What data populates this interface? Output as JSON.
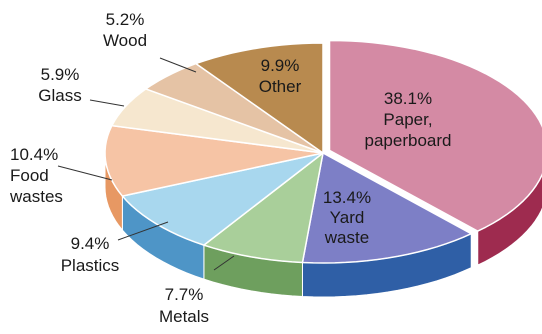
{
  "chart_data": {
    "type": "pie",
    "style": "3d-exploded",
    "title": "",
    "slices": [
      {
        "label_lines": [
          "Paper,",
          "paperboard"
        ],
        "value": 38.1,
        "pct_text": "38.1%",
        "color": "#d48aa4",
        "side_color": "#9e2b4f"
      },
      {
        "label_lines": [
          "Yard",
          "waste"
        ],
        "value": 13.4,
        "pct_text": "13.4%",
        "color": "#7d7fc6",
        "side_color": "#2f5fa6"
      },
      {
        "label_lines": [
          "Metals"
        ],
        "value": 7.7,
        "pct_text": "7.7%",
        "color": "#a9cf9a",
        "side_color": "#6e9f5e"
      },
      {
        "label_lines": [
          "Plastics"
        ],
        "value": 9.4,
        "pct_text": "9.4%",
        "color": "#a8d7ee",
        "side_color": "#4e95c7"
      },
      {
        "label_lines": [
          "Food",
          "wastes"
        ],
        "value": 10.4,
        "pct_text": "10.4%",
        "color": "#f6c4a5",
        "side_color": "#e79863"
      },
      {
        "label_lines": [
          "Glass"
        ],
        "value": 5.9,
        "pct_text": "5.9%",
        "color": "#f6e7cf",
        "side_color": "#e7d2a8"
      },
      {
        "label_lines": [
          "Wood"
        ],
        "value": 5.2,
        "pct_text": "5.2%",
        "color": "#e5c3a5",
        "side_color": "#c99b72"
      },
      {
        "label_lines": [
          "Other"
        ],
        "value": 9.9,
        "pct_text": "9.9%",
        "color": "#b88a4f",
        "side_color": "#7d5628"
      }
    ]
  }
}
